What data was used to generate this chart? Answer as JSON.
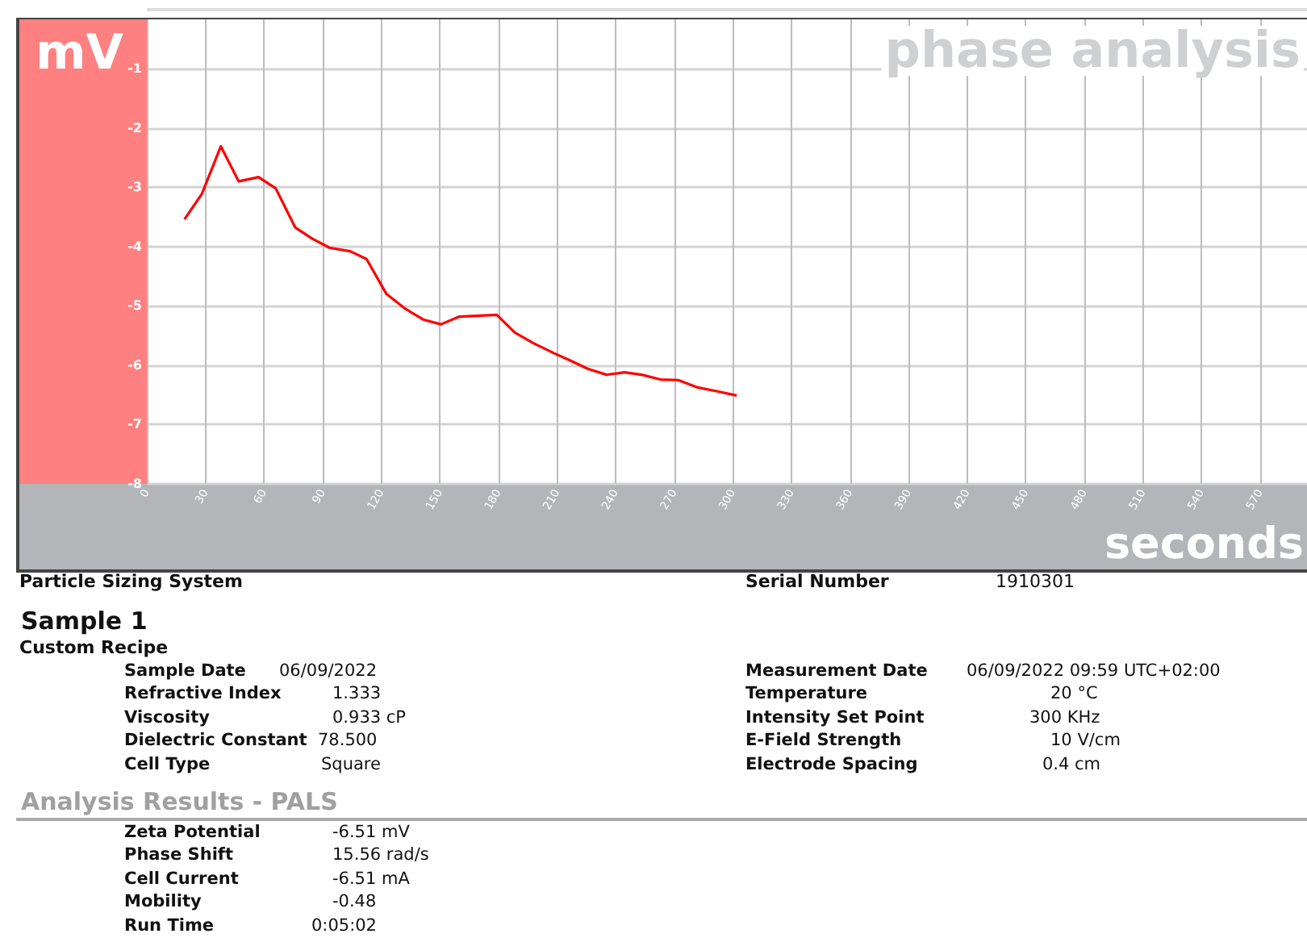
{
  "chart_data": {
    "type": "line",
    "title": "phase analysis",
    "xlabel": "seconds",
    "ylabel": "mV",
    "x": [
      19.3,
      28.2,
      37.9,
      47,
      57.2,
      66,
      76,
      84.8,
      93.6,
      104.2,
      112.5,
      122.7,
      132.4,
      141.5,
      150.6,
      160,
      179.2,
      188.4,
      198,
      208.6,
      216.8,
      225.7,
      235.3,
      244.5,
      253.3,
      263,
      272,
      281.5,
      290.6,
      302
    ],
    "series": [
      {
        "color": "#ff0000",
        "values": [
          -3.54,
          -3.11,
          -2.31,
          -2.9,
          -2.83,
          -3.02,
          -3.68,
          -3.87,
          -4.02,
          -4.08,
          -4.21,
          -4.8,
          -5.05,
          -5.23,
          -5.31,
          -5.18,
          -5.15,
          -5.45,
          -5.63,
          -5.8,
          -5.92,
          -6.06,
          -6.16,
          -6.12,
          -6.16,
          -6.24,
          -6.25,
          -6.37,
          -6.43,
          -6.51
        ]
      }
    ],
    "xlim": [
      0,
      594
    ],
    "xticks": [
      0,
      30,
      60,
      90,
      120,
      150,
      180,
      210,
      240,
      270,
      300,
      330,
      360,
      390,
      420,
      450,
      480,
      510,
      540,
      570
    ],
    "ylim": [
      -8,
      -0.17
    ],
    "yticks": [
      -1,
      -2,
      -3,
      -4,
      -5,
      -6,
      -7,
      -8
    ],
    "grid": true,
    "marker": "none",
    "line_style": "solid",
    "annotations": [
      "Particle Sizing System",
      "Serial Number",
      "1910301",
      "Sample 1",
      "Custom Recipe",
      "Sample Date",
      "06/09/2022",
      "Refractive Index",
      "1.333",
      "Viscosity",
      "0.933 cP",
      "Dielectric Constant",
      "78.500",
      "Cell Type",
      "Square",
      "Measurement Date",
      "06/09/2022 09:59 UTC+02:00",
      "Temperature",
      "20 °C",
      "Intensity Set Point",
      "300 KHz",
      "E-Field Strength",
      "10 V/cm",
      "Electrode Spacing",
      "0.4 cm",
      "Analysis Results - PALS",
      "Zeta Potential",
      "-6.51 mV",
      "Phase Shift",
      "15.56 rad/s",
      "Cell Current",
      "-6.51 mA",
      "Mobility",
      "-0.48",
      "Run Time",
      "0:05:02"
    ]
  }
}
